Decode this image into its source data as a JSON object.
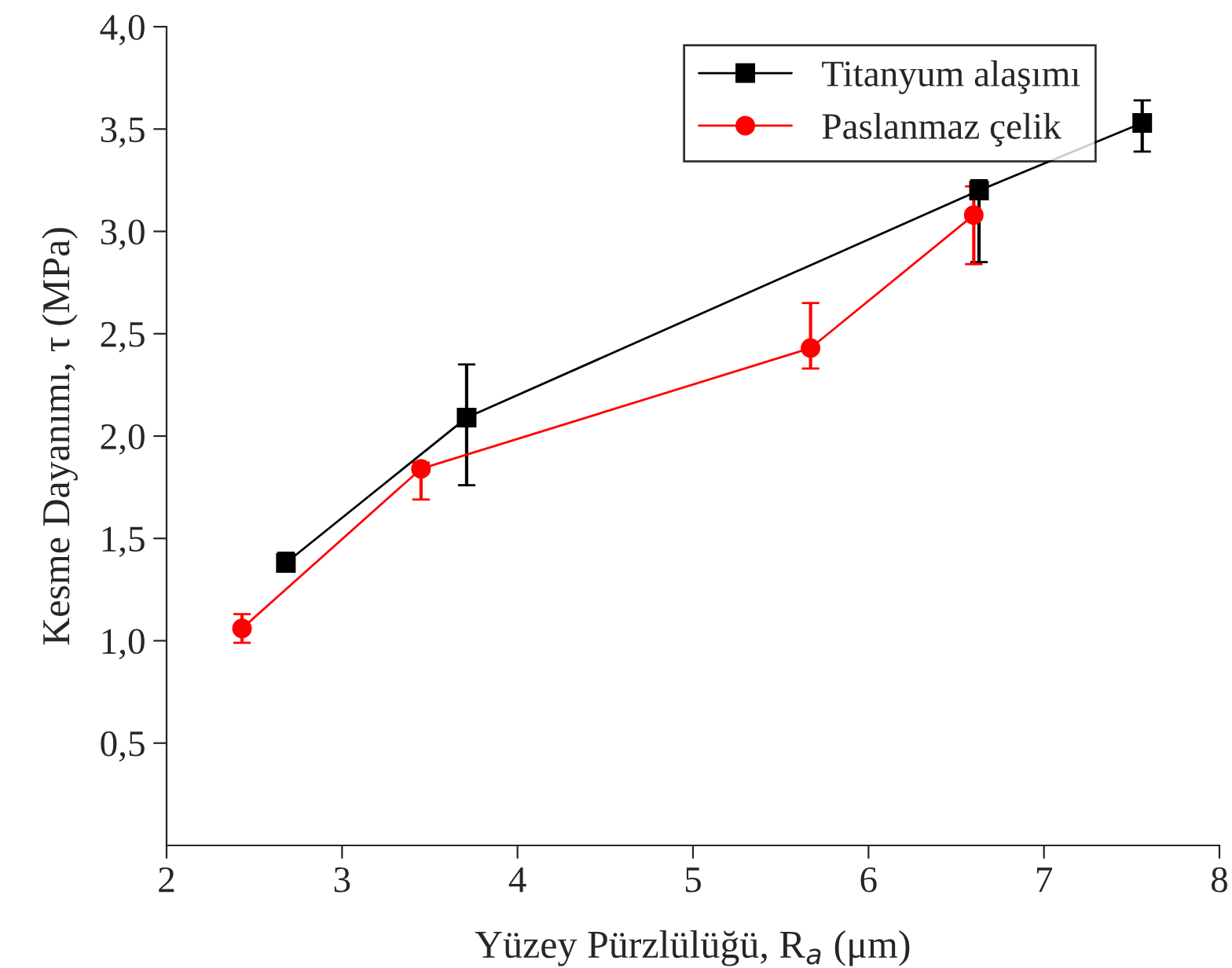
{
  "chart_data": {
    "type": "line",
    "xlabel": "Yüzey Pürzlülüğü, R$_{a}$ (μm)",
    "ylabel": "Kesme Dayanımı, τ (MPa)",
    "xlim": [
      2,
      8
    ],
    "xticks": [
      2,
      3,
      4,
      5,
      6,
      7,
      8
    ],
    "ylim": [
      0,
      4
    ],
    "yticks": [
      {
        "value": 0.5,
        "label": "0,5"
      },
      {
        "value": 1.0,
        "label": "1,0"
      },
      {
        "value": 1.5,
        "label": "1,5"
      },
      {
        "value": 2.0,
        "label": "2,0"
      },
      {
        "value": 2.5,
        "label": "2,5"
      },
      {
        "value": 3.0,
        "label": "3,0"
      },
      {
        "value": 3.5,
        "label": "3,5"
      },
      {
        "value": 4.0,
        "label": "4,0"
      }
    ],
    "grid": false,
    "legend": "top right",
    "line_style": "solid",
    "series": [
      {
        "name": "Titanyum alaşımı",
        "color": "#000000",
        "marker": "square",
        "x": [
          2.68,
          3.71,
          6.63,
          7.56
        ],
        "values": [
          1.38,
          2.09,
          3.2,
          3.53
        ],
        "errors": [
          [
            1.34,
            1.43
          ],
          [
            1.76,
            2.35
          ],
          [
            2.85,
            3.25
          ],
          [
            3.39,
            3.64
          ]
        ]
      },
      {
        "name": "Paslanmaz çelik",
        "color": "#ff0000",
        "marker": "circle",
        "x": [
          2.43,
          3.45,
          5.67,
          6.6
        ],
        "values": [
          1.06,
          1.84,
          2.43,
          3.08
        ],
        "errors": [
          [
            0.99,
            1.13
          ],
          [
            1.69,
            1.87
          ],
          [
            2.33,
            2.65
          ],
          [
            2.84,
            3.22
          ]
        ]
      }
    ]
  }
}
